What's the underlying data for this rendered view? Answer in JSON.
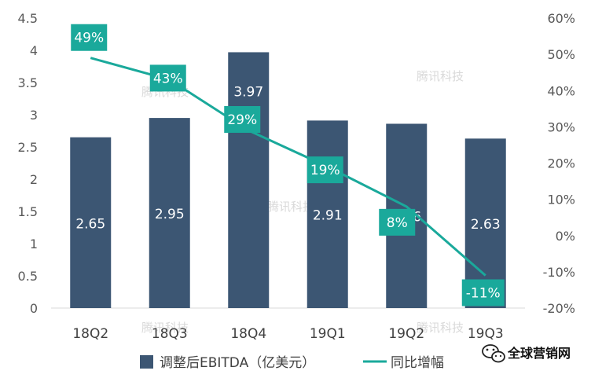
{
  "chart_data": {
    "type": "bar+line",
    "categories": [
      "18Q2",
      "18Q3",
      "18Q4",
      "19Q1",
      "19Q2",
      "19Q3"
    ],
    "series": [
      {
        "name": "调整后EBITDA（亿美元）",
        "type": "bar",
        "axis": "left",
        "values": [
          2.65,
          2.95,
          3.97,
          2.91,
          2.86,
          2.63
        ],
        "labels": [
          "2.65",
          "2.95",
          "3.97",
          "2.91",
          "2.86",
          "2.63"
        ],
        "color": "#3c5673"
      },
      {
        "name": "同比增幅",
        "type": "line",
        "axis": "right",
        "values": [
          49,
          43,
          29,
          19,
          8,
          -11
        ],
        "labels": [
          "49%",
          "43%",
          "29%",
          "19%",
          "8%",
          "-11%"
        ],
        "color": "#1aa99b"
      }
    ],
    "left_axis": {
      "ylim": [
        0,
        4.5
      ],
      "ticks": [
        "0",
        "0.5",
        "1",
        "1.5",
        "2",
        "2.5",
        "3",
        "3.5",
        "4",
        "4.5"
      ]
    },
    "right_axis": {
      "ylim": [
        -20,
        60
      ],
      "ticks": [
        "-20%",
        "-10%",
        "0%",
        "10%",
        "20%",
        "30%",
        "40%",
        "50%",
        "60%"
      ]
    },
    "grid": false,
    "legend_position": "bottom"
  },
  "watermark": "腾讯科技",
  "brand": {
    "icon": "wechat-icon",
    "text": "全球营销网"
  }
}
